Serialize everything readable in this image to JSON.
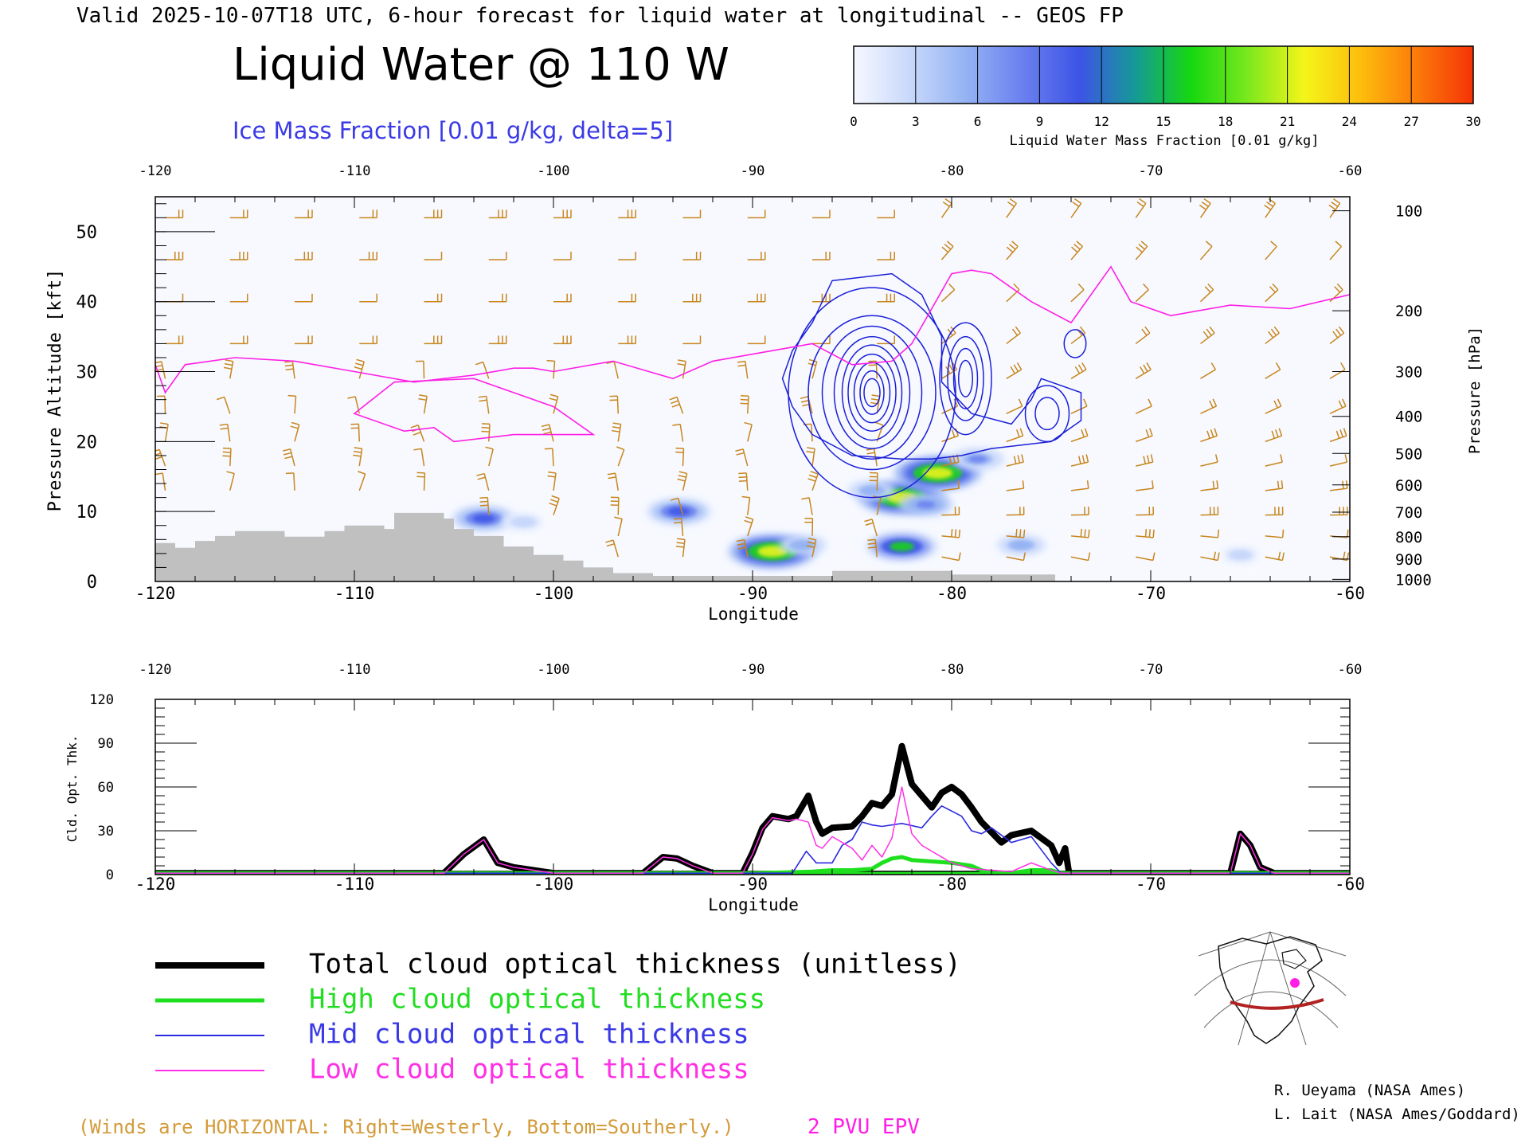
{
  "header": {
    "valid_line": "Valid 2025-10-07T18 UTC, 6-hour forecast for liquid water at longitudinal -- GEOS FP",
    "title": "Liquid Water @ 110 W",
    "subtitle": "Ice Mass Fraction [0.01 g/kg, delta=5]"
  },
  "colorbar": {
    "ticks": [
      "0",
      "3",
      "6",
      "9",
      "12",
      "15",
      "18",
      "21",
      "24",
      "27",
      "30"
    ],
    "label": "Liquid Water Mass Fraction [0.01 g/kg]",
    "colors": [
      "#f6f8ff",
      "#c8d8fb",
      "#94b2f3",
      "#6a80ef",
      "#3d54e6",
      "#159a96",
      "#16d80f",
      "#7be81e",
      "#f4f51a",
      "#fdbe0c",
      "#fb7a0a",
      "#f63307"
    ]
  },
  "colors": {
    "wind_barb": "#c8861d",
    "epv": "#ff1ee6",
    "ice_contour": "#1b20d8",
    "terrain": "#c0c0c0",
    "total": "#000000",
    "high": "#1ee01e",
    "mid": "#2a2ae0",
    "low": "#ff30e6"
  },
  "chart_data": [
    {
      "type": "heatmap",
      "title": "Liquid Water @ 110 W",
      "xlabel": "Longitude",
      "ylabel": "Pressure Altitude [kft]",
      "y2label": "Pressure [hPa]",
      "xlim": [
        -120,
        -60
      ],
      "ylim": [
        0,
        55
      ],
      "xticks": [
        "-120",
        "-110",
        "-100",
        "-90",
        "-80",
        "-70",
        "-60"
      ],
      "yticks": [
        "0",
        "10",
        "20",
        "30",
        "40",
        "50"
      ],
      "pressure_ticks": [
        {
          "label": "100",
          "alt": 53
        },
        {
          "label": "200",
          "alt": 38.7
        },
        {
          "label": "300",
          "alt": 30
        },
        {
          "label": "400",
          "alt": 23.6
        },
        {
          "label": "500",
          "alt": 18.3
        },
        {
          "label": "600",
          "alt": 13.8
        },
        {
          "label": "700",
          "alt": 9.9
        },
        {
          "label": "800",
          "alt": 6.4
        },
        {
          "label": "900",
          "alt": 3.2
        },
        {
          "label": "1000",
          "alt": 0.3
        }
      ],
      "terrain_kft": [
        [
          -120,
          5.5
        ],
        [
          -119,
          5.5
        ],
        [
          -119,
          4.8
        ],
        [
          -118,
          4.8
        ],
        [
          -118,
          5.8
        ],
        [
          -117,
          5.8
        ],
        [
          -117,
          6.5
        ],
        [
          -116,
          6.5
        ],
        [
          -116,
          7.2
        ],
        [
          -113.5,
          7.2
        ],
        [
          -113.5,
          6.4
        ],
        [
          -111.5,
          6.4
        ],
        [
          -111.5,
          7.2
        ],
        [
          -110.5,
          7.2
        ],
        [
          -110.5,
          8
        ],
        [
          -108.5,
          8
        ],
        [
          -108.5,
          7.5
        ],
        [
          -108,
          7.5
        ],
        [
          -108,
          9.8
        ],
        [
          -105.5,
          9.8
        ],
        [
          -105.5,
          9
        ],
        [
          -105,
          9
        ],
        [
          -105,
          7.5
        ],
        [
          -104,
          7.5
        ],
        [
          -104,
          6.5
        ],
        [
          -102.5,
          6.5
        ],
        [
          -102.5,
          5
        ],
        [
          -101,
          5
        ],
        [
          -101,
          3.8
        ],
        [
          -99.5,
          3.8
        ],
        [
          -99.5,
          3
        ],
        [
          -98.5,
          3
        ],
        [
          -98.5,
          2
        ],
        [
          -97,
          2
        ],
        [
          -97,
          1.2
        ],
        [
          -95,
          1.2
        ],
        [
          -95,
          0.8
        ],
        [
          -86,
          0.8
        ],
        [
          -86,
          1.5
        ],
        [
          -80,
          1.5
        ],
        [
          -80,
          1
        ],
        [
          -74.8,
          1
        ],
        [
          -74.8,
          0
        ]
      ],
      "liquid_water_blobs": [
        {
          "lon": -89,
          "alt": 4.3,
          "peak": 21
        },
        {
          "lon": -87.5,
          "alt": 5.2,
          "peak": 6
        },
        {
          "lon": -82.5,
          "alt": 5,
          "peak": 15
        },
        {
          "lon": -82.5,
          "alt": 12,
          "peak": 21
        },
        {
          "lon": -80.7,
          "alt": 15.5,
          "peak": 21
        },
        {
          "lon": -81.3,
          "alt": 11,
          "peak": 9
        },
        {
          "lon": -84,
          "alt": 13,
          "peak": 6
        },
        {
          "lon": -93.7,
          "alt": 10,
          "peak": 12
        },
        {
          "lon": -103.5,
          "alt": 9,
          "peak": 12
        },
        {
          "lon": -101.5,
          "alt": 8.5,
          "peak": 4
        },
        {
          "lon": -76.5,
          "alt": 5.2,
          "peak": 6
        },
        {
          "lon": -65.5,
          "alt": 3.8,
          "peak": 3
        },
        {
          "lon": -78.7,
          "alt": 17.5,
          "peak": 8
        }
      ],
      "epv_2pvu_line_kft": [
        [
          -120,
          31
        ],
        [
          -119.5,
          27
        ],
        [
          -118.5,
          31
        ],
        [
          -116,
          32
        ],
        [
          -113,
          31.5
        ],
        [
          -110,
          30
        ],
        [
          -107,
          28.5
        ],
        [
          -104,
          29.5
        ],
        [
          -102,
          30.5
        ],
        [
          -101,
          30.5
        ],
        [
          -100,
          30
        ],
        [
          -97,
          31.5
        ],
        [
          -94,
          29
        ],
        [
          -92,
          31.5
        ],
        [
          -89,
          33
        ],
        [
          -87,
          34
        ],
        [
          -85,
          31
        ],
        [
          -83,
          31.5
        ],
        [
          -82,
          34
        ],
        [
          -80,
          44
        ],
        [
          -79,
          44.5
        ],
        [
          -78,
          44
        ],
        [
          -76,
          40
        ],
        [
          -74,
          37
        ],
        [
          -72,
          45
        ],
        [
          -71,
          40
        ],
        [
          -69,
          38
        ],
        [
          -66,
          39.5
        ],
        [
          -63,
          39
        ],
        [
          -60,
          41
        ]
      ],
      "epv_lower_loop_kft": [
        [
          -108,
          28.5
        ],
        [
          -110,
          24
        ],
        [
          -107.5,
          21.5
        ],
        [
          -106,
          22
        ],
        [
          -105,
          20
        ],
        [
          -102,
          21
        ],
        [
          -98,
          21
        ],
        [
          -100,
          25
        ],
        [
          -102,
          27
        ],
        [
          -104,
          29
        ]
      ],
      "ice_contour_rings": [
        {
          "lon": -84,
          "alt": 27,
          "rx": [
            4.2,
            3.2,
            2.5,
            1.9,
            1.5,
            1.2,
            0.9,
            0.6,
            0.4
          ],
          "ry": [
            15,
            11,
            9.5,
            8,
            6.8,
            5.5,
            4.3,
            3.1,
            2
          ]
        },
        {
          "lon": -79.3,
          "alt": 29,
          "rx": [
            1.3,
            0.9,
            0.6,
            0.35
          ],
          "ry": [
            8,
            6,
            4.3,
            2.6
          ]
        },
        {
          "lon": -75.2,
          "alt": 24,
          "rx": [
            1.1,
            0.6
          ],
          "ry": [
            4,
            2.3
          ]
        },
        {
          "lon": -73.8,
          "alt": 34,
          "rx": [
            0.55
          ],
          "ry": [
            2
          ]
        }
      ],
      "ice_outer_contour_kft": [
        [
          -86,
          43
        ],
        [
          -83,
          44
        ],
        [
          -81.5,
          41
        ],
        [
          -80.5,
          35
        ],
        [
          -80.5,
          28.5
        ],
        [
          -79,
          24
        ],
        [
          -77,
          22.5
        ],
        [
          -76,
          26
        ],
        [
          -75.5,
          29
        ],
        [
          -73.5,
          27
        ],
        [
          -73.5,
          23
        ],
        [
          -75,
          20
        ],
        [
          -78,
          19
        ],
        [
          -79.5,
          18
        ],
        [
          -81,
          17.5
        ],
        [
          -82.5,
          17.5
        ],
        [
          -85,
          18
        ],
        [
          -87,
          21
        ],
        [
          -88,
          25
        ],
        [
          -88.5,
          29
        ],
        [
          -88,
          33
        ],
        [
          -87,
          37
        ]
      ]
    },
    {
      "type": "line",
      "xlabel": "Longitude",
      "ylabel": "Cld. Opt. Thk.",
      "xlim": [
        -120,
        -60
      ],
      "ylim": [
        0,
        120
      ],
      "xticks": [
        "-120",
        "-110",
        "-100",
        "-90",
        "-80",
        "-70",
        "-60"
      ],
      "yticks": [
        "0",
        "30",
        "60",
        "90",
        "120"
      ],
      "series": [
        {
          "name": "Total cloud optical thickness (unitless)",
          "x": [
            -120,
            -105.5,
            -104.5,
            -103.5,
            -102.8,
            -102,
            -101,
            -100,
            -99,
            -95.5,
            -94.5,
            -93.8,
            -93,
            -92,
            -90.5,
            -90,
            -89.5,
            -89,
            -88.2,
            -87.8,
            -87.2,
            -86.8,
            -86.5,
            -86,
            -85,
            -84.5,
            -84,
            -83.5,
            -83,
            -82.5,
            -82,
            -81.5,
            -81,
            -80.5,
            -80,
            -79.5,
            -79,
            -78.5,
            -78,
            -77.5,
            -77,
            -76,
            -75,
            -74.6,
            -74.3,
            -74.1,
            -73,
            -66,
            -65.5,
            -65,
            -64.5,
            -63.8,
            -60
          ],
          "y": [
            1,
            1,
            14,
            24,
            8,
            5,
            3,
            1,
            1,
            1,
            12,
            11,
            6,
            1,
            1,
            15,
            32,
            40,
            38,
            40,
            54,
            36,
            28,
            32,
            33,
            40,
            49,
            47,
            55,
            88,
            62,
            54,
            46,
            56,
            60,
            55,
            46,
            36,
            29,
            22,
            27,
            30,
            20,
            8,
            18,
            1,
            1,
            1,
            28,
            20,
            5,
            1,
            1
          ]
        },
        {
          "name": "High cloud optical thickness",
          "x": [
            -120,
            -91,
            -90,
            -87,
            -86,
            -85,
            -84,
            -83.5,
            -83,
            -82.5,
            -82,
            -81,
            -80,
            -79,
            -78.5,
            -78,
            -77,
            -76,
            -75,
            -74.5,
            -60
          ],
          "y": [
            1,
            1,
            1,
            2,
            3,
            3,
            4,
            8,
            11,
            12,
            10,
            9,
            8,
            6,
            3,
            1,
            1,
            3,
            3,
            1,
            1
          ]
        },
        {
          "name": "Mid cloud optical thickness",
          "x": [
            -120,
            -88,
            -87.3,
            -86.8,
            -86,
            -85.5,
            -85,
            -84.5,
            -84,
            -83.5,
            -82.5,
            -81.5,
            -81,
            -80.5,
            -79.5,
            -79,
            -78.5,
            -78,
            -77,
            -76,
            -75,
            -74.5,
            -60
          ],
          "y": [
            1,
            1,
            16,
            8,
            8,
            20,
            24,
            36,
            34,
            33,
            35,
            32,
            40,
            47,
            40,
            30,
            28,
            32,
            22,
            26,
            8,
            1,
            1
          ]
        },
        {
          "name": "Low cloud optical thickness",
          "x": [
            -120,
            -105.5,
            -104.5,
            -103.5,
            -102.8,
            -102,
            -101,
            -100,
            -99,
            -95.5,
            -94.5,
            -93.8,
            -93,
            -92,
            -90.5,
            -90,
            -89.5,
            -89,
            -88.2,
            -87.8,
            -87.2,
            -86.8,
            -86.5,
            -86,
            -85,
            -84.5,
            -84,
            -83.5,
            -83,
            -82.5,
            -82,
            -81.5,
            -80.5,
            -80,
            -79,
            -78,
            -77,
            -76,
            -75,
            -74.5,
            -66,
            -65.5,
            -65,
            -64.5,
            -63.8,
            -60
          ],
          "y": [
            1,
            1,
            14,
            24,
            8,
            5,
            3,
            1,
            1,
            1,
            12,
            11,
            6,
            1,
            1,
            14,
            31,
            39,
            37,
            38,
            36,
            20,
            18,
            26,
            18,
            10,
            20,
            12,
            25,
            60,
            28,
            20,
            12,
            8,
            4,
            3,
            2,
            8,
            3,
            1,
            1,
            28,
            20,
            5,
            1,
            1
          ]
        }
      ]
    }
  ],
  "legend": {
    "total": "Total cloud optical thickness (unitless)",
    "high": "High cloud optical thickness",
    "mid": "Mid cloud optical thickness",
    "low": "Low cloud optical thickness"
  },
  "footer": {
    "winds_note": "(Winds are HORIZONTAL: Right=Westerly, Bottom=Southerly.)",
    "epv_label": "2 PVU EPV",
    "credit_1": "R. Ueyama (NASA Ames)",
    "credit_2": "L. Lait (NASA Ames/Goddard)"
  }
}
